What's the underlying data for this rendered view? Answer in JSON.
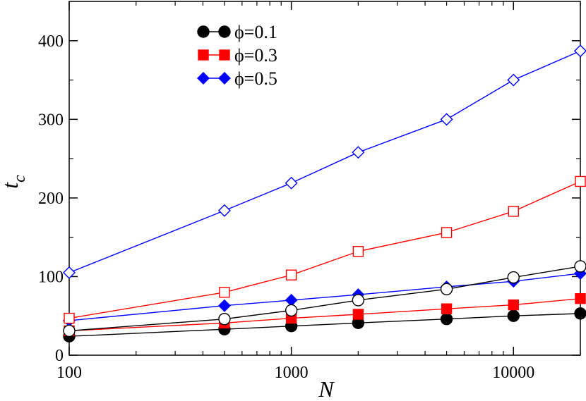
{
  "chart_data": {
    "type": "line",
    "x_scale": "log",
    "xlim": [
      100,
      20000
    ],
    "ylim": [
      0,
      450
    ],
    "x_ticks": [
      100,
      1000,
      10000
    ],
    "x_tick_labels": [
      "100",
      "1000",
      "10000"
    ],
    "y_ticks": [
      0,
      100,
      200,
      300,
      400
    ],
    "y_tick_labels": [
      "0",
      "100",
      "200",
      "300",
      "400"
    ],
    "xlabel": "N",
    "ylabel": "t",
    "ylabel_subscript": "c",
    "grid": false,
    "legend_position": "top-center",
    "x": [
      100,
      500,
      1000,
      2000,
      5000,
      10000,
      20000
    ],
    "series": [
      {
        "name": "ϕ=0.1",
        "color": "#000000",
        "marker": "circle",
        "fill": "filled",
        "in_legend": true,
        "values": [
          24,
          33,
          37,
          41,
          46,
          50,
          53
        ]
      },
      {
        "name": "ϕ=0.3",
        "color": "#ff0000",
        "marker": "square",
        "fill": "filled",
        "in_legend": true,
        "values": [
          31,
          41,
          47,
          52,
          59,
          64,
          72
        ]
      },
      {
        "name": "ϕ=0.5",
        "color": "#0000ff",
        "marker": "diamond",
        "fill": "filled",
        "in_legend": true,
        "values": [
          44,
          63,
          70,
          77,
          87,
          94,
          104
        ]
      },
      {
        "name": "",
        "color": "#000000",
        "marker": "circle",
        "fill": "open",
        "in_legend": false,
        "values": [
          31,
          46,
          57,
          70,
          84,
          99,
          113
        ]
      },
      {
        "name": "",
        "color": "#ff0000",
        "marker": "square",
        "fill": "open",
        "in_legend": false,
        "values": [
          47,
          80,
          102,
          132,
          156,
          183,
          221
        ]
      },
      {
        "name": "",
        "color": "#0000ff",
        "marker": "diamond",
        "fill": "open",
        "in_legend": false,
        "values": [
          105,
          184,
          219,
          258,
          300,
          350,
          387
        ]
      }
    ]
  }
}
